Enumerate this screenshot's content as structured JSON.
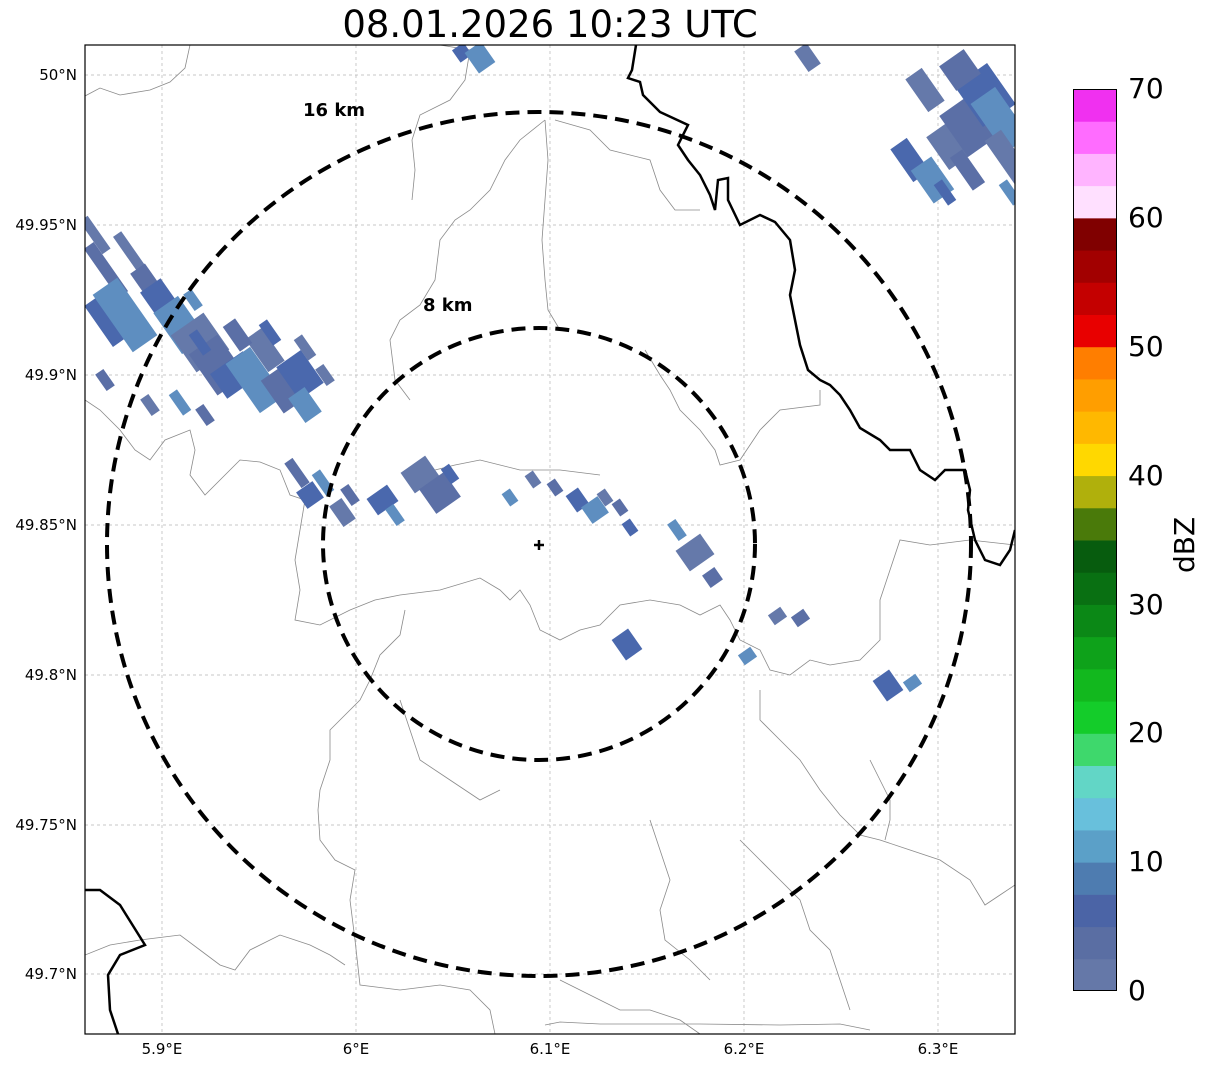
{
  "title": "08.01.2026 10:23 UTC",
  "map": {
    "center_lon": 6.094,
    "center_lat": 49.843,
    "lon_range": [
      5.86,
      6.34
    ],
    "lat_range": [
      49.68,
      50.01
    ],
    "gridlines": true,
    "lat_ticks": [
      "50°N",
      "49.95°N",
      "49.9°N",
      "49.85°N",
      "49.8°N",
      "49.75°N",
      "49.7°N"
    ],
    "lon_ticks": [
      "5.9°E",
      "6°E",
      "6.1°E",
      "6.2°E",
      "6.3°E"
    ],
    "rings": [
      {
        "label": "16 km",
        "radius_km": 16
      },
      {
        "label": "8 km",
        "radius_km": 8
      }
    ],
    "radar_site_marker": "plus",
    "border_colors": {
      "national": "#000000",
      "regional": "#888888"
    }
  },
  "colorbar": {
    "label": "dBZ",
    "ticks": [
      "0",
      "10",
      "20",
      "30",
      "40",
      "50",
      "60",
      "70"
    ],
    "range": [
      0,
      70
    ],
    "colors": [
      "#6578a8",
      "#5a6ea3",
      "#4b64a6",
      "#4e7cb0",
      "#5ba0c8",
      "#68c0dc",
      "#62d6c6",
      "#3ed86c",
      "#14cc2a",
      "#12b81e",
      "#0ea21a",
      "#0b8816",
      "#097012",
      "#075c0e",
      "#4a7a0a",
      "#b0b00c",
      "#ffd800",
      "#ffb800",
      "#ff9e00",
      "#ff7e00",
      "#e80000",
      "#c40000",
      "#a20000",
      "#800000",
      "#ffe0ff",
      "#ffb4ff",
      "#ff6cff",
      "#f030f0"
    ]
  }
}
